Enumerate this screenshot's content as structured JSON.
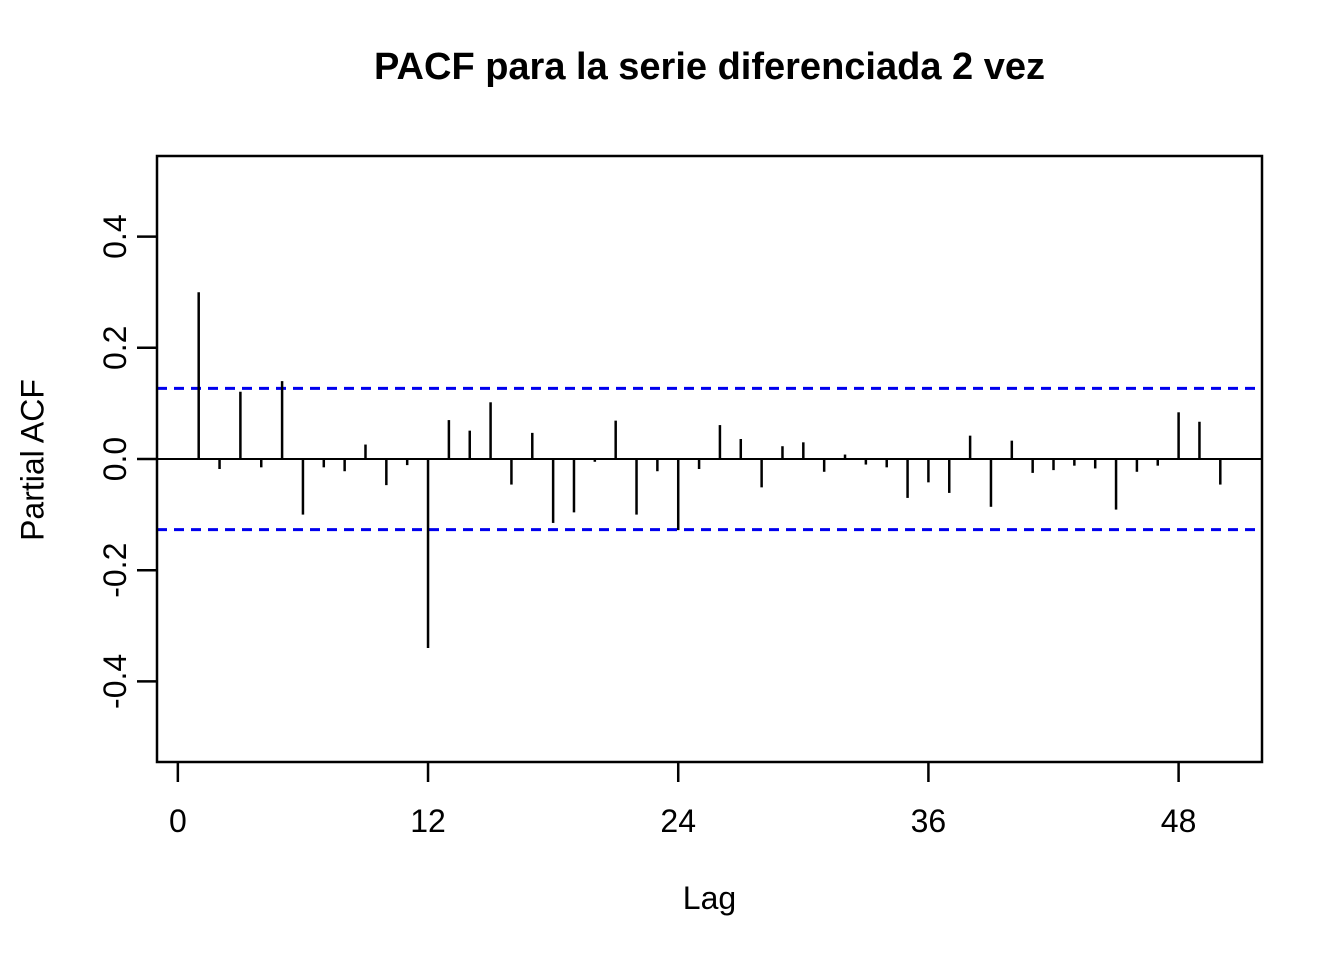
{
  "chart_data": {
    "type": "bar",
    "subtype": "pacf-lollipop",
    "title": "PACF para la serie diferenciada 2 vez",
    "xlabel": "Lag",
    "ylabel": "Partial ACF",
    "xlim": [
      -1,
      52
    ],
    "ylim": [
      -0.545,
      0.545
    ],
    "grid": false,
    "x_ticks": [
      0,
      12,
      24,
      36,
      48
    ],
    "y_ticks": [
      {
        "label": "0.4",
        "value": 0.4
      },
      {
        "label": "0.2",
        "value": 0.2
      },
      {
        "label": "0.0",
        "value": 0.0
      },
      {
        "label": "-0.2",
        "value": -0.2
      },
      {
        "label": "-0.4",
        "value": -0.4
      }
    ],
    "x": [
      1,
      2,
      3,
      4,
      5,
      6,
      7,
      8,
      9,
      10,
      11,
      12,
      13,
      14,
      15,
      16,
      17,
      18,
      19,
      20,
      21,
      22,
      23,
      24,
      25,
      26,
      27,
      28,
      29,
      30,
      31,
      32,
      33,
      34,
      35,
      36,
      37,
      38,
      39,
      40,
      41,
      42,
      43,
      44,
      45,
      46,
      47,
      48,
      49,
      50
    ],
    "values": [
      0.3,
      -0.018,
      0.121,
      -0.015,
      0.14,
      -0.1,
      -0.015,
      -0.022,
      0.026,
      -0.047,
      -0.011,
      -0.34,
      0.07,
      0.051,
      0.102,
      -0.046,
      0.047,
      -0.115,
      -0.096,
      -0.005,
      0.069,
      -0.1,
      -0.022,
      -0.128,
      -0.018,
      0.061,
      0.036,
      -0.051,
      0.023,
      0.03,
      -0.023,
      0.008,
      -0.01,
      -0.015,
      -0.07,
      -0.042,
      -0.061,
      0.042,
      -0.086,
      0.033,
      -0.025,
      -0.02,
      -0.012,
      -0.017,
      -0.091,
      -0.023,
      -0.012,
      0.084,
      0.067,
      -0.046
    ],
    "confidence_bands": {
      "upper": 0.127,
      "lower": -0.127,
      "style": "dashed",
      "color": "#0000EE"
    },
    "colors": {
      "bar": "#000000",
      "frame": "#000000",
      "zero_line": "#000000",
      "band": "#0000EE",
      "background": "#FFFFFF"
    }
  }
}
